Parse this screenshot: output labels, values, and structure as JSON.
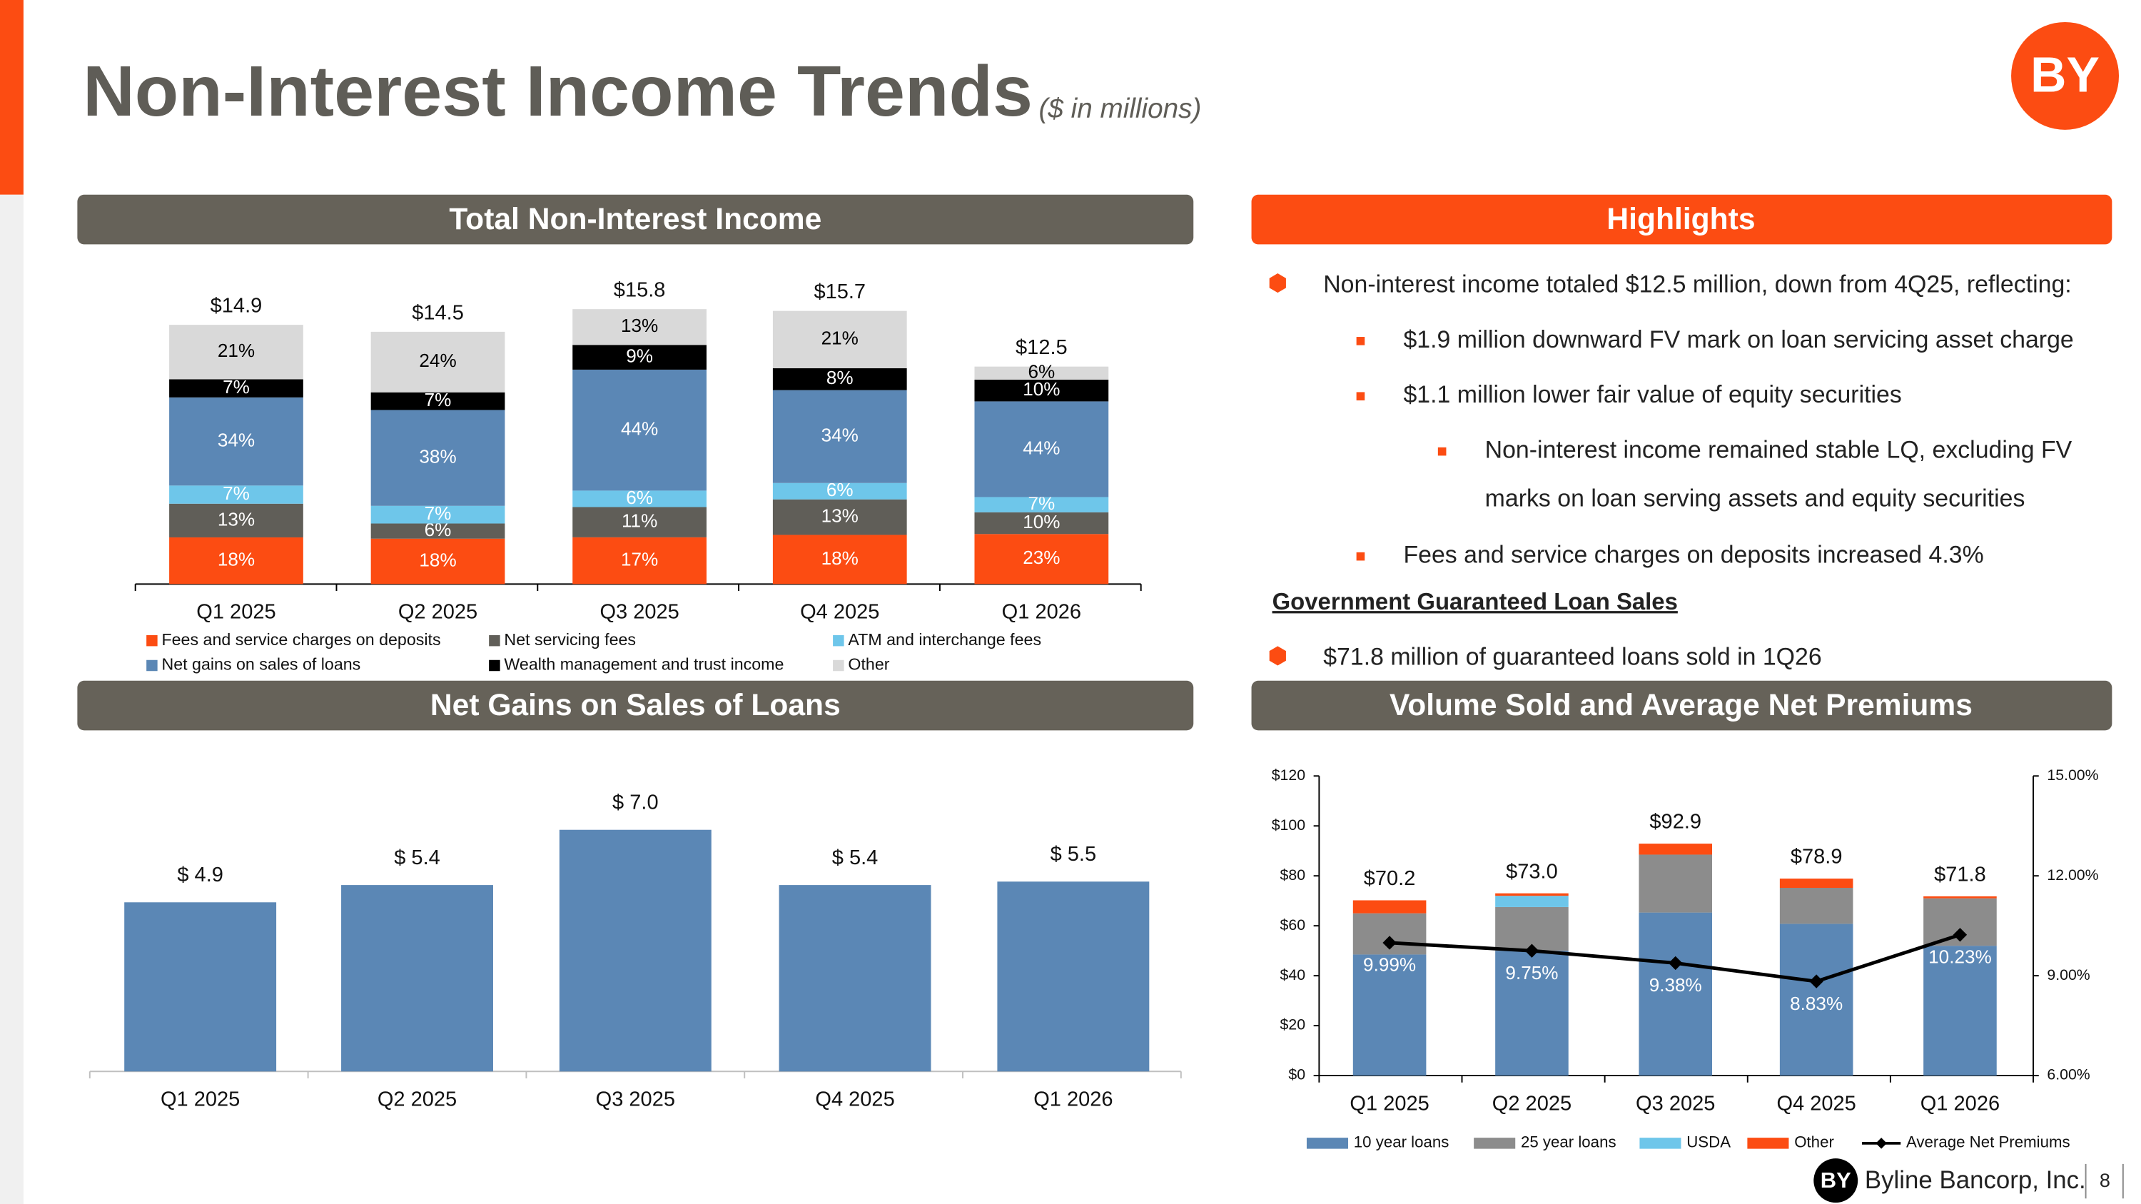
{
  "header": {
    "title": "Non-Interest Income Trends",
    "subtitle": "($ in millions)",
    "logo": "BY"
  },
  "highlights": {
    "title": "Highlights",
    "items": [
      "Non-interest income totaled $12.5 million, down from 4Q25, reflecting:",
      "$1.9 million downward FV mark on loan servicing asset charge",
      "$1.1 million lower fair value of equity securities",
      "Non-interest income remained stable LQ, excluding FV",
      "marks on loan serving assets and equity securities",
      "Fees and service charges on deposits increased 4.3%"
    ],
    "loan_sales_heading": "Government Guaranteed Loan Sales",
    "loan_sales_items": [
      "$71.8 million of guaranteed loans sold in 1Q26"
    ]
  },
  "footer": {
    "company": "Byline Bancorp, Inc.",
    "page": "8"
  },
  "chart_data": [
    {
      "type": "stacked_percent_bar",
      "title": "Total Non-Interest Income",
      "categories": [
        "Q1 2025",
        "Q2 2025",
        "Q3 2025",
        "Q4 2025",
        "Q1 2026"
      ],
      "totals": [
        14.9,
        14.5,
        15.8,
        15.7,
        12.5
      ],
      "totals_labels": [
        "$14.9",
        "$14.5",
        "$15.8",
        "$15.7",
        "$12.5"
      ],
      "series": [
        {
          "name": "Fees and service charges on deposits",
          "color": "#fc4c12",
          "values": [
            18,
            18,
            17,
            18,
            23
          ],
          "value_labels": [
            "18%",
            "18%",
            "17%",
            "18%",
            "23%"
          ]
        },
        {
          "name": "Net servicing fees",
          "color": "#605e58",
          "values": [
            13,
            6,
            11,
            13,
            10
          ],
          "value_labels": [
            "13%",
            "6%",
            "11%",
            "13%",
            "10%"
          ]
        },
        {
          "name": "ATM and interchange fees",
          "color": "#6ec6ea",
          "values": [
            7,
            7,
            6,
            6,
            7
          ],
          "value_labels": [
            "7%",
            "7%",
            "6%",
            "6%",
            "7%"
          ]
        },
        {
          "name": "Net gains on sales of loans",
          "color": "#5b87b5",
          "values": [
            34,
            38,
            44,
            34,
            44
          ],
          "value_labels": [
            "34%",
            "38%",
            "44%",
            "34%",
            "44%"
          ]
        },
        {
          "name": "Wealth management and trust income",
          "color": "#000000",
          "values": [
            7,
            7,
            9,
            8,
            10
          ],
          "value_labels": [
            "7%",
            "7%",
            "9%",
            "8%",
            "10%"
          ]
        },
        {
          "name": "Other",
          "color": "#d9d9d9",
          "values": [
            21,
            24,
            13,
            21,
            6
          ],
          "value_labels": [
            "21%",
            "24%",
            "13%",
            "21%",
            "6%"
          ]
        }
      ]
    },
    {
      "type": "bar",
      "title": "Net Gains on Sales of Loans",
      "categories": [
        "Q1 2025",
        "Q2 2025",
        "Q3 2025",
        "Q4 2025",
        "Q1 2026"
      ],
      "values": [
        4.9,
        5.4,
        7.0,
        5.4,
        5.5
      ],
      "value_labels": [
        "$ 4.9",
        "$ 5.4",
        "$ 7.0",
        "$ 5.4",
        "$ 5.5"
      ],
      "color": "#5b87b5"
    },
    {
      "type": "combo",
      "title": "Volume Sold and Average Net Premiums",
      "categories": [
        "Q1 2025",
        "Q2 2025",
        "Q3 2025",
        "Q4 2025",
        "Q1 2026"
      ],
      "totals": [
        70.2,
        73.0,
        92.9,
        78.9,
        71.8
      ],
      "totals_labels": [
        "$70.2",
        "$73.0",
        "$92.9",
        "$78.9",
        "$71.8"
      ],
      "ylim": [
        0,
        120
      ],
      "yticks": [
        {
          "value": 0,
          "label": "$0"
        },
        {
          "value": 20,
          "label": "$20"
        },
        {
          "value": 40,
          "label": "$40"
        },
        {
          "value": 60,
          "label": "$60"
        },
        {
          "value": 80,
          "label": "$80"
        },
        {
          "value": 100,
          "label": "$100"
        },
        {
          "value": 120,
          "label": "$120"
        }
      ],
      "y2lim": [
        6,
        15
      ],
      "y2ticks": [
        {
          "value": 6,
          "label": "6.00%"
        },
        {
          "value": 9,
          "label": "9.00%"
        },
        {
          "value": 12,
          "label": "12.00%"
        },
        {
          "value": 15,
          "label": "15.00%"
        }
      ],
      "series": [
        {
          "name": "10 year loans",
          "color": "#5b87b5",
          "values": [
            48.5,
            50.0,
            65.3,
            60.8,
            52.0
          ]
        },
        {
          "name": "25 year loans",
          "color": "#8c8c8c",
          "values": [
            16.5,
            17.5,
            23.2,
            14.4,
            19.0
          ]
        },
        {
          "name": "USDA",
          "color": "#6ec6ea",
          "values": [
            0,
            4.5,
            0,
            0,
            0
          ]
        },
        {
          "name": "Other",
          "color": "#fc4c12",
          "values": [
            5.2,
            1.0,
            4.4,
            3.7,
            0.8
          ]
        },
        {
          "name": "Average Net Premiums",
          "color": "#000000",
          "axis": "y2",
          "values": [
            9.99,
            9.75,
            9.38,
            8.83,
            10.23
          ],
          "value_labels": [
            "9.99%",
            "9.75%",
            "9.38%",
            "8.83%",
            "10.23%"
          ]
        }
      ]
    }
  ]
}
